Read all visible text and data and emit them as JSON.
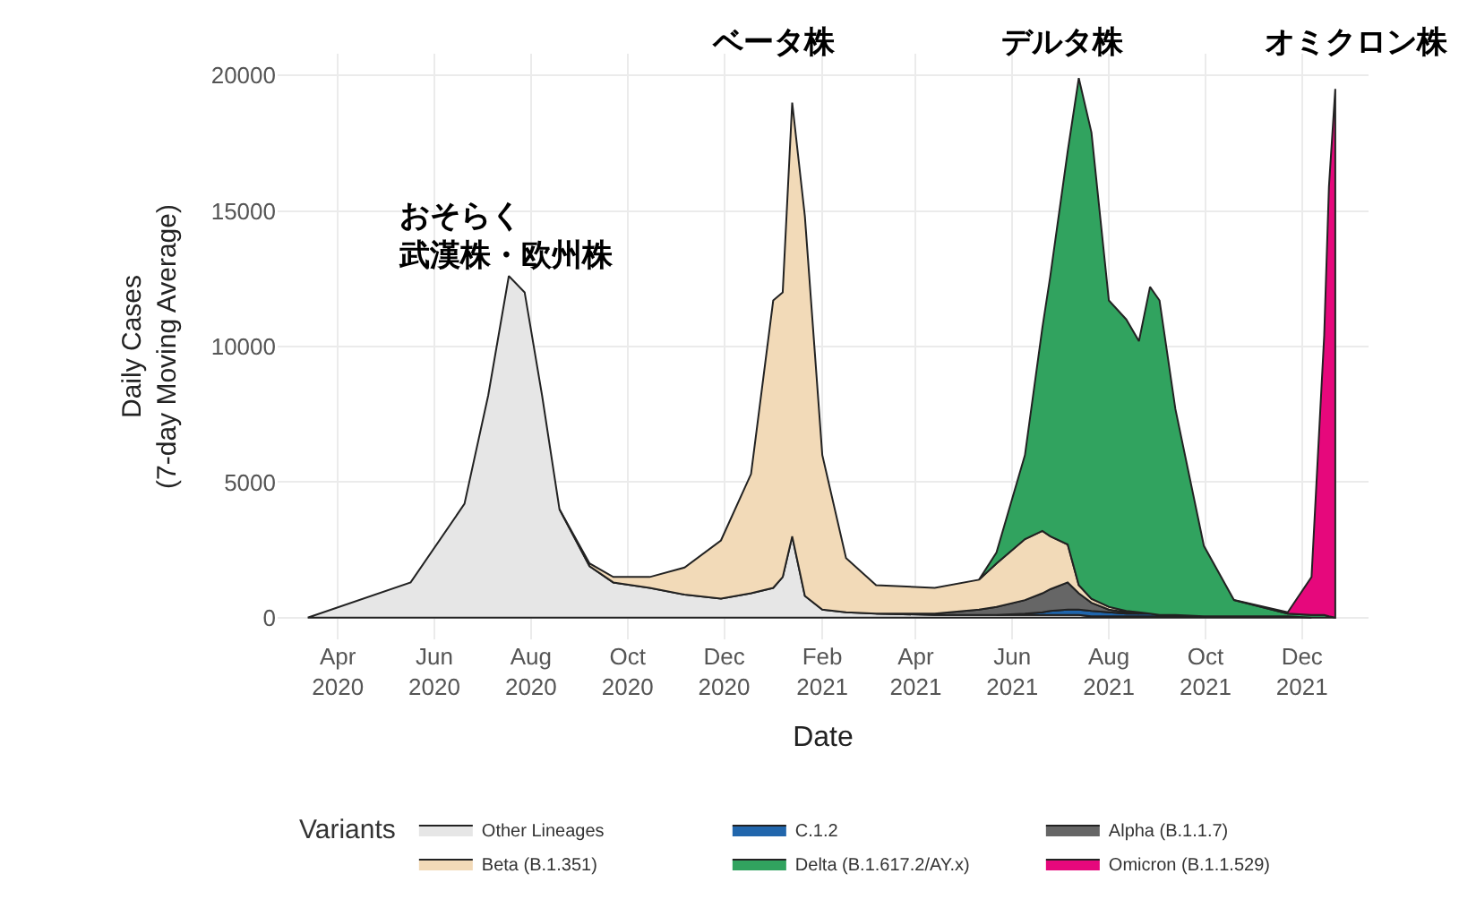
{
  "chart_data": {
    "type": "area",
    "stacked": true,
    "xlabel": "Date",
    "ylabel": "Daily Cases\n(7-day Moving Average)",
    "legend_title": "Variants",
    "x": [
      "2020-03-13",
      "2020-05-17",
      "2020-06-20",
      "2020-07-05",
      "2020-07-18",
      "2020-07-28",
      "2020-08-08",
      "2020-08-19",
      "2020-09-07",
      "2020-09-22",
      "2020-10-15",
      "2020-11-06",
      "2020-11-29",
      "2020-12-18",
      "2021-01-01",
      "2021-01-07",
      "2021-01-13",
      "2021-01-21",
      "2021-02-01",
      "2021-02-16",
      "2021-03-07",
      "2021-04-13",
      "2021-05-11",
      "2021-05-22",
      "2021-06-09",
      "2021-06-20",
      "2021-06-25",
      "2021-07-06",
      "2021-07-13",
      "2021-07-21",
      "2021-08-01",
      "2021-08-12",
      "2021-08-20",
      "2021-08-27",
      "2021-09-02",
      "2021-09-12",
      "2021-09-30",
      "2021-10-19",
      "2021-11-22",
      "2021-12-07",
      "2021-12-15",
      "2021-12-18",
      "2021-12-22"
    ],
    "series": [
      {
        "name": "Other Lineages",
        "color": "#e6e6e6",
        "values": [
          0,
          1300,
          4200,
          8200,
          12600,
          12000,
          8200,
          4000,
          1900,
          1300,
          1100,
          850,
          700,
          900,
          1100,
          1500,
          3000,
          800,
          300,
          200,
          150,
          100,
          100,
          100,
          100,
          100,
          100,
          100,
          100,
          50,
          50,
          50,
          50,
          50,
          50,
          50,
          50,
          50,
          50,
          0,
          null,
          null,
          null
        ]
      },
      {
        "name": "C.1.2",
        "color": "#2166ac",
        "values": [
          null,
          null,
          null,
          null,
          null,
          null,
          null,
          null,
          null,
          null,
          null,
          null,
          null,
          null,
          null,
          null,
          null,
          null,
          null,
          null,
          null,
          null,
          null,
          0,
          50,
          100,
          150,
          200,
          200,
          200,
          150,
          100,
          100,
          100,
          50,
          50,
          0,
          null,
          null,
          null,
          null,
          null,
          null
        ]
      },
      {
        "name": "Alpha (B.1.1.7)",
        "color": "#666666",
        "values": [
          null,
          null,
          null,
          null,
          null,
          null,
          null,
          null,
          null,
          null,
          null,
          null,
          null,
          null,
          null,
          null,
          null,
          null,
          null,
          null,
          0,
          50,
          200,
          300,
          500,
          700,
          800,
          1000,
          600,
          300,
          100,
          50,
          0,
          null,
          null,
          null,
          null,
          null,
          null,
          null,
          null,
          null,
          null
        ]
      },
      {
        "name": "Beta (B.1.351)",
        "color": "#f2dab8",
        "values": [
          null,
          null,
          null,
          null,
          null,
          null,
          null,
          0,
          100,
          200,
          400,
          1000,
          2150,
          4400,
          10600,
          10500,
          16000,
          14000,
          5700,
          2000,
          1050,
          950,
          1100,
          1600,
          2250,
          2300,
          1950,
          1400,
          300,
          150,
          100,
          50,
          50,
          0,
          null,
          null,
          null,
          null,
          null,
          null,
          null,
          null,
          null
        ]
      },
      {
        "name": "Delta (B.1.617.2/AY.x)",
        "color": "#31a35f",
        "values": [
          null,
          null,
          null,
          null,
          null,
          null,
          null,
          null,
          null,
          null,
          null,
          null,
          null,
          null,
          null,
          null,
          null,
          null,
          null,
          null,
          null,
          null,
          0,
          400,
          3100,
          7500,
          9600,
          14500,
          18700,
          17200,
          11300,
          10750,
          10000,
          12050,
          11600,
          7600,
          2600,
          600,
          100,
          100,
          100,
          50,
          0
        ]
      },
      {
        "name": "Omicron (B.1.1.529)",
        "color": "#e6087c",
        "values": [
          null,
          null,
          null,
          null,
          null,
          null,
          null,
          null,
          null,
          null,
          null,
          null,
          null,
          null,
          null,
          null,
          null,
          null,
          null,
          null,
          null,
          null,
          null,
          null,
          null,
          null,
          null,
          null,
          null,
          null,
          null,
          null,
          null,
          null,
          null,
          null,
          null,
          0,
          50,
          1400,
          10300,
          15850,
          19500
        ]
      }
    ],
    "xlim": [
      "2020-02-23",
      "2022-01-12"
    ],
    "xticks": [
      {
        "value": "2020-04-01",
        "label": "Apr\n2020"
      },
      {
        "value": "2020-06-01",
        "label": "Jun\n2020"
      },
      {
        "value": "2020-08-01",
        "label": "Aug\n2020"
      },
      {
        "value": "2020-10-01",
        "label": "Oct\n2020"
      },
      {
        "value": "2020-12-01",
        "label": "Dec\n2020"
      },
      {
        "value": "2021-02-01",
        "label": "Feb\n2021"
      },
      {
        "value": "2021-04-01",
        "label": "Apr\n2021"
      },
      {
        "value": "2021-06-01",
        "label": "Jun\n2021"
      },
      {
        "value": "2021-08-01",
        "label": "Aug\n2021"
      },
      {
        "value": "2021-10-01",
        "label": "Oct\n2021"
      },
      {
        "value": "2021-12-01",
        "label": "Dec\n2021"
      }
    ],
    "ylim": [
      -800,
      20800
    ],
    "yticks": [
      0,
      5000,
      10000,
      15000,
      20000
    ],
    "grid": true,
    "legend": "bottom",
    "annotations": [
      "おそらく武漢株・欧州株",
      "ベータ株",
      "デルタ株",
      "オミクロン株"
    ]
  }
}
